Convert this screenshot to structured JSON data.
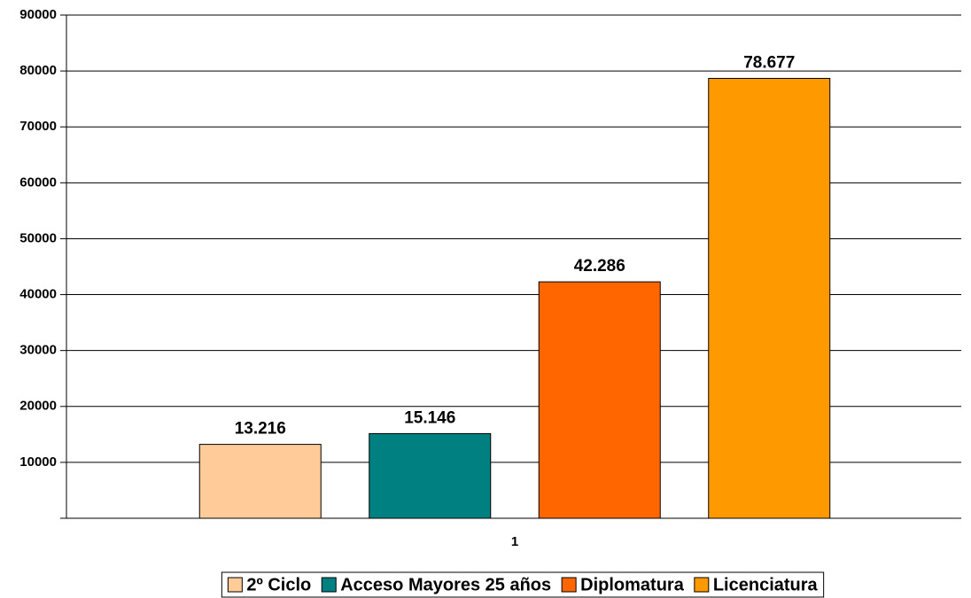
{
  "chart_data": {
    "type": "bar",
    "categories": [
      "1"
    ],
    "series": [
      {
        "name": "2º Ciclo",
        "color": "#FFCC99",
        "values": [
          13216
        ],
        "value_labels": [
          "13.216"
        ]
      },
      {
        "name": "Acceso Mayores 25 años",
        "color": "#008080",
        "values": [
          15146
        ],
        "value_labels": [
          "15.146"
        ]
      },
      {
        "name": "Diplomatura",
        "color": "#FF6600",
        "values": [
          42286
        ],
        "value_labels": [
          "42.286"
        ]
      },
      {
        "name": "Licenciatura",
        "color": "#FF9900",
        "values": [
          78677
        ],
        "value_labels": [
          "78.677"
        ]
      }
    ],
    "ylim": [
      0,
      90000
    ],
    "yticks": [
      10000,
      20000,
      30000,
      40000,
      50000,
      60000,
      70000,
      80000,
      90000
    ],
    "grid": true,
    "legend": "bottom"
  }
}
